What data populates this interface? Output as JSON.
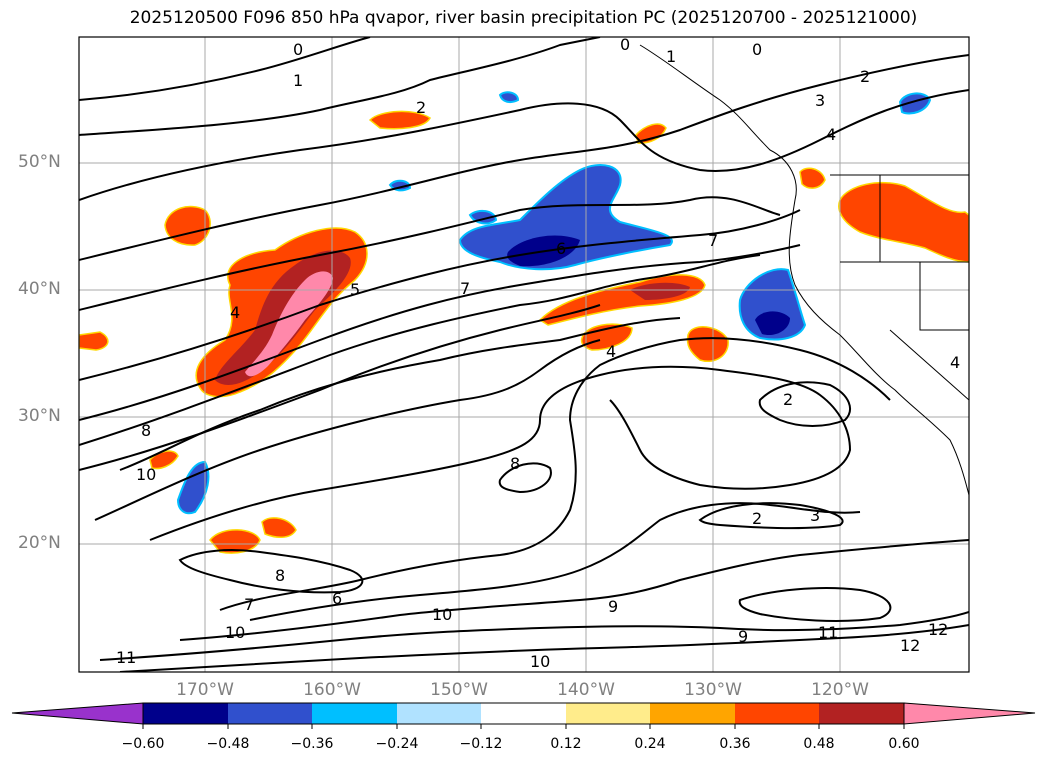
{
  "title": "2025120500 F096 850 hPa qvapor, river basin precipitation PC (2025120700 - 2025121000)",
  "map": {
    "lat_labels": [
      "50°N",
      "40°N",
      "30°N",
      "20°N"
    ],
    "lon_labels": [
      "170°W",
      "160°W",
      "150°W",
      "140°W",
      "130°W",
      "120°W"
    ],
    "contour_labels": [
      "0",
      "0",
      "1",
      "0",
      "1",
      "2",
      "2",
      "3",
      "4",
      "5",
      "6",
      "7",
      "7",
      "4",
      "4",
      "2",
      "2",
      "3",
      "8",
      "8",
      "9",
      "10",
      "10",
      "11",
      "11",
      "10",
      "9",
      "8",
      "7",
      "6",
      "12",
      "12",
      "4",
      "10"
    ]
  },
  "colorbar": {
    "colors": [
      "#9932cc",
      "#00008b",
      "#3050cd",
      "#00bfff",
      "#b0e2ff",
      "#ffffff",
      "#ffec8b",
      "#ffa500",
      "#ff4500",
      "#b22222",
      "#ff88aa"
    ],
    "ticks": [
      "−0.60",
      "−0.48",
      "−0.36",
      "−0.24",
      "−0.12",
      "0.12",
      "0.24",
      "0.36",
      "0.48",
      "0.60"
    ]
  }
}
